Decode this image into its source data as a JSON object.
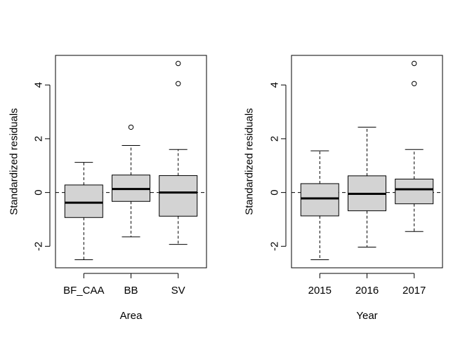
{
  "chart_data": [
    {
      "type": "boxplot",
      "title": "",
      "xlabel": "Area",
      "ylabel": "Standardized residuals",
      "ylim": [
        -2.8,
        5.1
      ],
      "yticks": [
        -2,
        0,
        2,
        4
      ],
      "ytick_labels": [
        "-2",
        "0",
        "2",
        "4"
      ],
      "reference_line": {
        "y": 0,
        "style": "dashed"
      },
      "grid": false,
      "box_fill": "#d3d3d3",
      "categories": [
        "BF_CAA",
        "BB",
        "SV"
      ],
      "boxes": [
        {
          "category": "BF_CAA",
          "whisker_low": -2.5,
          "q1": -0.93,
          "median": -0.38,
          "q3": 0.28,
          "whisker_high": 1.12,
          "outliers": []
        },
        {
          "category": "BB",
          "whisker_low": -1.65,
          "q1": -0.33,
          "median": 0.13,
          "q3": 0.65,
          "whisker_high": 1.75,
          "outliers": [
            2.43
          ]
        },
        {
          "category": "SV",
          "whisker_low": -1.93,
          "q1": -0.88,
          "median": 0.0,
          "q3": 0.63,
          "whisker_high": 1.6,
          "outliers": [
            4.05,
            4.8
          ]
        }
      ]
    },
    {
      "type": "boxplot",
      "title": "",
      "xlabel": "Year",
      "ylabel": "Standardized residuals",
      "ylim": [
        -2.8,
        5.1
      ],
      "yticks": [
        -2,
        0,
        2,
        4
      ],
      "ytick_labels": [
        "-2",
        "0",
        "2",
        "4"
      ],
      "reference_line": {
        "y": 0,
        "style": "dashed"
      },
      "grid": false,
      "box_fill": "#d3d3d3",
      "categories": [
        "2015",
        "2016",
        "2017"
      ],
      "boxes": [
        {
          "category": "2015",
          "whisker_low": -2.5,
          "q1": -0.87,
          "median": -0.22,
          "q3": 0.33,
          "whisker_high": 1.55,
          "outliers": []
        },
        {
          "category": "2016",
          "whisker_low": -2.03,
          "q1": -0.68,
          "median": -0.05,
          "q3": 0.62,
          "whisker_high": 2.43,
          "outliers": []
        },
        {
          "category": "2017",
          "whisker_low": -1.45,
          "q1": -0.42,
          "median": 0.12,
          "q3": 0.5,
          "whisker_high": 1.6,
          "outliers": [
            4.05,
            4.8
          ]
        }
      ]
    }
  ]
}
